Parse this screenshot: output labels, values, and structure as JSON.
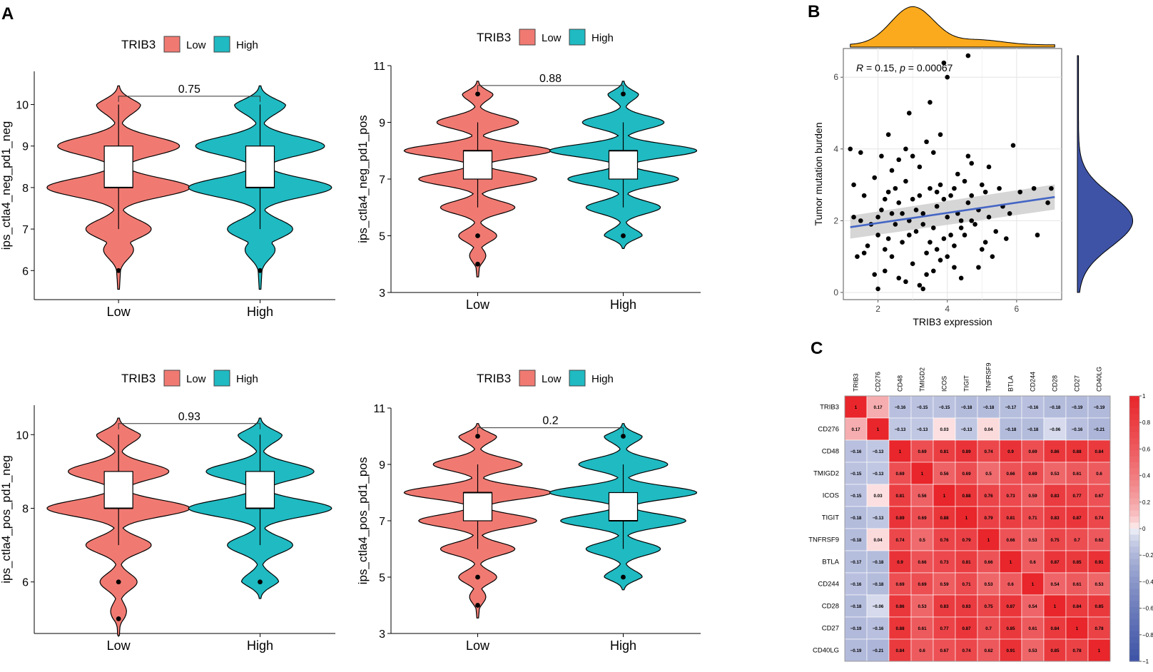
{
  "panel_labels": {
    "a": "A",
    "b": "B",
    "c": "C"
  },
  "colors": {
    "low": "#F07A72",
    "high": "#1FBAC2",
    "line": "#4566C4",
    "band": "#CFCFCF",
    "density_x": "#FBAA1D",
    "density_y": "#3E53A6",
    "pos": "#E8262B",
    "neg": "#3E53A6"
  },
  "chart_data": [
    {
      "type": "violin",
      "id": "v1",
      "legend": {
        "title": "TRIB3",
        "items": [
          "Low",
          "High"
        ]
      },
      "categories": [
        "Low",
        "High"
      ],
      "ylabel": "ips_ctla4_neg_pd1_neg",
      "ylim": [
        5.3,
        10.8
      ],
      "yticks": [
        6,
        7,
        8,
        9,
        10
      ],
      "pvalue": "0.75",
      "bracket_y": 10.2,
      "groups": [
        {
          "name": "Low",
          "min": 7,
          "q1": 8,
          "median": 8,
          "q3": 9,
          "max": 10,
          "outliers": [
            6
          ],
          "peaks": [
            [
              6.5,
              0.2
            ],
            [
              7,
              0.45
            ],
            [
              8,
              1
            ],
            [
              9,
              0.85
            ],
            [
              10,
              0.3
            ]
          ]
        },
        {
          "name": "High",
          "min": 7,
          "q1": 8,
          "median": 8,
          "q3": 9,
          "max": 10,
          "outliers": [
            6
          ],
          "peaks": [
            [
              6.5,
              0.2
            ],
            [
              7,
              0.45
            ],
            [
              8,
              1
            ],
            [
              9,
              0.9
            ],
            [
              10,
              0.35
            ]
          ]
        }
      ]
    },
    {
      "type": "violin",
      "id": "v2",
      "legend": {
        "title": "TRIB3",
        "items": [
          "Low",
          "High"
        ]
      },
      "categories": [
        "Low",
        "High"
      ],
      "ylabel": "ips_ctla4_neg_pd1_pos",
      "ylim": [
        3,
        11
      ],
      "yticks": [
        3,
        5,
        7,
        9,
        11
      ],
      "pvalue": "0.88",
      "bracket_y": 10.3,
      "groups": [
        {
          "name": "Low",
          "min": 6,
          "q1": 7,
          "median": 8,
          "q3": 8,
          "max": 9,
          "outliers": [
            4,
            5,
            10
          ],
          "peaks": [
            [
              4.3,
              0.1
            ],
            [
              5,
              0.25
            ],
            [
              6,
              0.5
            ],
            [
              7,
              0.8
            ],
            [
              8,
              1
            ],
            [
              9,
              0.55
            ],
            [
              10,
              0.2
            ]
          ]
        },
        {
          "name": "High",
          "min": 6,
          "q1": 7,
          "median": 8,
          "q3": 8,
          "max": 9,
          "outliers": [
            5,
            10
          ],
          "peaks": [
            [
              4.8,
              0.1
            ],
            [
              5,
              0.25
            ],
            [
              6,
              0.5
            ],
            [
              7,
              0.75
            ],
            [
              8,
              1
            ],
            [
              9,
              0.55
            ],
            [
              10,
              0.2
            ]
          ]
        }
      ]
    },
    {
      "type": "violin",
      "id": "v3",
      "legend": {
        "title": "TRIB3",
        "items": [
          "Low",
          "High"
        ]
      },
      "categories": [
        "Low",
        "High"
      ],
      "ylabel": "ips_ctla4_pos_pd1_neg",
      "ylim": [
        4.6,
        10.8
      ],
      "yticks": [
        6,
        8,
        10
      ],
      "pvalue": "0.93",
      "bracket_y": 10.3,
      "groups": [
        {
          "name": "Low",
          "min": 7,
          "q1": 8,
          "median": 8,
          "q3": 9,
          "max": 10,
          "outliers": [
            5,
            6
          ],
          "peaks": [
            [
              5.2,
              0.1
            ],
            [
              6,
              0.25
            ],
            [
              7,
              0.45
            ],
            [
              8,
              1
            ],
            [
              9,
              0.7
            ],
            [
              10,
              0.3
            ]
          ]
        },
        {
          "name": "High",
          "min": 7,
          "q1": 8,
          "median": 8,
          "q3": 9,
          "max": 10,
          "outliers": [
            6
          ],
          "peaks": [
            [
              6,
              0.25
            ],
            [
              7,
              0.45
            ],
            [
              8,
              1
            ],
            [
              9,
              0.75
            ],
            [
              10,
              0.3
            ]
          ]
        }
      ]
    },
    {
      "type": "violin",
      "id": "v4",
      "legend": {
        "title": "TRIB3",
        "items": [
          "Low",
          "High"
        ]
      },
      "categories": [
        "Low",
        "High"
      ],
      "ylabel": "ips_ctla4_pos_pd1_pos",
      "ylim": [
        3,
        11
      ],
      "yticks": [
        3,
        5,
        7,
        9,
        11
      ],
      "pvalue": "0.2",
      "bracket_y": 10.3,
      "groups": [
        {
          "name": "Low",
          "min": 6,
          "q1": 7,
          "median": 8,
          "q3": 8,
          "max": 9,
          "outliers": [
            4,
            5,
            10
          ],
          "peaks": [
            [
              4.3,
              0.1
            ],
            [
              5,
              0.25
            ],
            [
              6,
              0.5
            ],
            [
              7,
              0.8
            ],
            [
              8,
              1
            ],
            [
              9,
              0.6
            ],
            [
              10,
              0.25
            ]
          ]
        },
        {
          "name": "High",
          "min": 6,
          "q1": 7,
          "median": 7,
          "q3": 8,
          "max": 9,
          "outliers": [
            5,
            10
          ],
          "peaks": [
            [
              4.8,
              0.1
            ],
            [
              5,
              0.25
            ],
            [
              6,
              0.5
            ],
            [
              7,
              0.85
            ],
            [
              8,
              1
            ],
            [
              9,
              0.6
            ],
            [
              10,
              0.25
            ]
          ]
        }
      ]
    },
    {
      "type": "scatter",
      "id": "scatter",
      "xlabel": "TRIB3 expression",
      "ylabel": "Tumor mutation burden",
      "annotation": {
        "r_label": "R",
        "r_value": "= 0.15,",
        "p_label": "p",
        "p_value": "= 0.00067"
      },
      "xlim": [
        1,
        7.3
      ],
      "ylim": [
        -0.2,
        6.8
      ],
      "xticks": [
        2,
        4,
        6
      ],
      "yticks": [
        0,
        2,
        4,
        6
      ],
      "regression": {
        "x0": 1.2,
        "y0": 1.82,
        "x1": 7.1,
        "y1": 2.66
      },
      "points": [
        [
          1.6,
          2.7
        ],
        [
          1.9,
          3.2
        ],
        [
          2.0,
          1.6
        ],
        [
          2.1,
          2.3
        ],
        [
          2.2,
          1.2
        ],
        [
          2.3,
          2.8
        ],
        [
          2.4,
          3.4
        ],
        [
          2.5,
          1.9
        ],
        [
          2.6,
          2.5
        ],
        [
          2.7,
          1.4
        ],
        [
          2.8,
          3.1
        ],
        [
          2.9,
          2.0
        ],
        [
          3.0,
          2.6
        ],
        [
          3.1,
          1.7
        ],
        [
          3.2,
          3.5
        ],
        [
          3.3,
          2.2
        ],
        [
          3.4,
          1.1
        ],
        [
          3.5,
          2.9
        ],
        [
          3.6,
          1.8
        ],
        [
          3.7,
          2.4
        ],
        [
          3.8,
          3.0
        ],
        [
          3.9,
          1.5
        ],
        [
          4.0,
          2.1
        ],
        [
          4.1,
          2.7
        ],
        [
          4.2,
          1.3
        ],
        [
          4.3,
          3.3
        ],
        [
          4.4,
          2.0
        ],
        [
          4.5,
          1.6
        ],
        [
          4.6,
          2.5
        ],
        [
          4.7,
          3.6
        ],
        [
          4.8,
          1.9
        ],
        [
          4.9,
          2.3
        ],
        [
          5.0,
          1.2
        ],
        [
          5.1,
          2.8
        ],
        [
          5.2,
          2.1
        ],
        [
          5.4,
          1.7
        ],
        [
          5.6,
          2.4
        ],
        [
          5.8,
          2.2
        ],
        [
          2.2,
          0.6
        ],
        [
          2.6,
          0.4
        ],
        [
          3.0,
          0.8
        ],
        [
          3.4,
          0.5
        ],
        [
          3.8,
          0.9
        ],
        [
          4.2,
          0.7
        ],
        [
          2.4,
          1.0
        ],
        [
          2.8,
          0.3
        ],
        [
          3.2,
          0.2
        ],
        [
          3.6,
          0.6
        ],
        [
          4.0,
          1.0
        ],
        [
          4.4,
          0.4
        ],
        [
          2.0,
          2.1
        ],
        [
          2.3,
          1.5
        ],
        [
          2.7,
          2.2
        ],
        [
          3.1,
          2.3
        ],
        [
          3.5,
          1.4
        ],
        [
          3.9,
          2.6
        ],
        [
          4.3,
          2.2
        ],
        [
          4.7,
          2.0
        ],
        [
          3.3,
          1.9
        ],
        [
          2.9,
          1.6
        ],
        [
          3.7,
          1.2
        ],
        [
          4.1,
          1.6
        ],
        [
          2.5,
          2.9
        ],
        [
          3.0,
          3.8
        ],
        [
          3.6,
          3.9
        ],
        [
          4.5,
          3.1
        ],
        [
          2.1,
          3.8
        ],
        [
          5.0,
          3.0
        ],
        [
          5.3,
          1.0
        ],
        [
          1.8,
          1.9
        ],
        [
          1.5,
          2.0
        ],
        [
          1.7,
          1.3
        ],
        [
          1.4,
          1.0
        ],
        [
          2.8,
          4.0
        ],
        [
          3.4,
          4.2
        ],
        [
          2.6,
          3.7
        ],
        [
          4.6,
          3.8
        ],
        [
          5.2,
          3.5
        ],
        [
          4.9,
          0.7
        ],
        [
          5.5,
          2.9
        ],
        [
          6.1,
          2.8
        ],
        [
          6.5,
          2.9
        ],
        [
          6.6,
          1.6
        ],
        [
          7.0,
          2.9
        ],
        [
          6.9,
          2.5
        ],
        [
          5.9,
          4.1
        ],
        [
          1.2,
          4.0
        ],
        [
          1.3,
          3.0
        ],
        [
          1.5,
          3.9
        ],
        [
          2.3,
          4.4
        ],
        [
          2.9,
          5.0
        ],
        [
          3.5,
          5.3
        ],
        [
          3.9,
          6.4
        ],
        [
          4.0,
          6.0
        ],
        [
          4.6,
          6.6
        ],
        [
          3.8,
          4.4
        ],
        [
          1.3,
          2.1
        ],
        [
          1.6,
          1.1
        ],
        [
          1.9,
          0.5
        ],
        [
          2.0,
          0.1
        ],
        [
          3.3,
          0.1
        ],
        [
          4.7,
          2.7
        ],
        [
          5.7,
          1.5
        ],
        [
          5.1,
          1.4
        ],
        [
          2.2,
          2.6
        ],
        [
          3.7,
          2.8
        ],
        [
          4.2,
          2.9
        ],
        [
          2.4,
          2.2
        ],
        [
          3.2,
          2.7
        ],
        [
          4.4,
          1.8
        ]
      ]
    },
    {
      "type": "heatmap",
      "id": "heatmap",
      "labels": [
        "TRIB3",
        "CD276",
        "CD48",
        "TMIGD2",
        "ICOS",
        "TIGIT",
        "TNFRSF9",
        "BTLA",
        "CD244",
        "CD28",
        "CD27",
        "CD40LG"
      ],
      "values": [
        [
          "1",
          "0.17",
          "−0.16",
          "−0.15",
          "−0.15",
          "−0.18",
          "−0.18",
          "−0.17",
          "−0.16",
          "−0.18",
          "−0.19",
          "−0.19"
        ],
        [
          "0.17",
          "1",
          "−0.13",
          "−0.13",
          "0.03",
          "−0.13",
          "0.04",
          "−0.18",
          "−0.18",
          "−0.06",
          "−0.16",
          "−0.21"
        ],
        [
          "−0.16",
          "−0.13",
          "1",
          "0.69",
          "0.81",
          "0.89",
          "0.74",
          "0.9",
          "0.69",
          "0.86",
          "0.88",
          "0.84"
        ],
        [
          "−0.15",
          "−0.13",
          "0.69",
          "1",
          "0.56",
          "0.69",
          "0.5",
          "0.66",
          "0.69",
          "0.53",
          "0.61",
          "0.6"
        ],
        [
          "−0.15",
          "0.03",
          "0.81",
          "0.56",
          "1",
          "0.88",
          "0.76",
          "0.73",
          "0.59",
          "0.83",
          "0.77",
          "0.67"
        ],
        [
          "−0.18",
          "−0.13",
          "0.89",
          "0.69",
          "0.88",
          "1",
          "0.79",
          "0.81",
          "0.71",
          "0.83",
          "0.87",
          "0.74"
        ],
        [
          "−0.18",
          "0.04",
          "0.74",
          "0.5",
          "0.76",
          "0.79",
          "1",
          "0.66",
          "0.53",
          "0.75",
          "0.7",
          "0.62"
        ],
        [
          "−0.17",
          "−0.18",
          "0.9",
          "0.66",
          "0.73",
          "0.81",
          "0.66",
          "1",
          "0.6",
          "0.87",
          "0.85",
          "0.91"
        ],
        [
          "−0.16",
          "−0.18",
          "0.69",
          "0.69",
          "0.59",
          "0.71",
          "0.53",
          "0.6",
          "1",
          "0.54",
          "0.61",
          "0.53"
        ],
        [
          "−0.18",
          "−0.06",
          "0.86",
          "0.53",
          "0.83",
          "0.83",
          "0.75",
          "0.87",
          "0.54",
          "1",
          "0.84",
          "0.85"
        ],
        [
          "−0.19",
          "−0.16",
          "0.88",
          "0.61",
          "0.77",
          "0.87",
          "0.7",
          "0.85",
          "0.61",
          "0.84",
          "1",
          "0.78"
        ],
        [
          "−0.19",
          "−0.21",
          "0.84",
          "0.6",
          "0.67",
          "0.74",
          "0.62",
          "0.91",
          "0.53",
          "0.85",
          "0.78",
          "1"
        ]
      ],
      "colorbar_ticks": [
        "1",
        "0.8",
        "0.6",
        "0.4",
        "0.2",
        "0",
        "−0.2",
        "−0.4",
        "−0.6",
        "−0.8",
        "−1"
      ]
    }
  ]
}
